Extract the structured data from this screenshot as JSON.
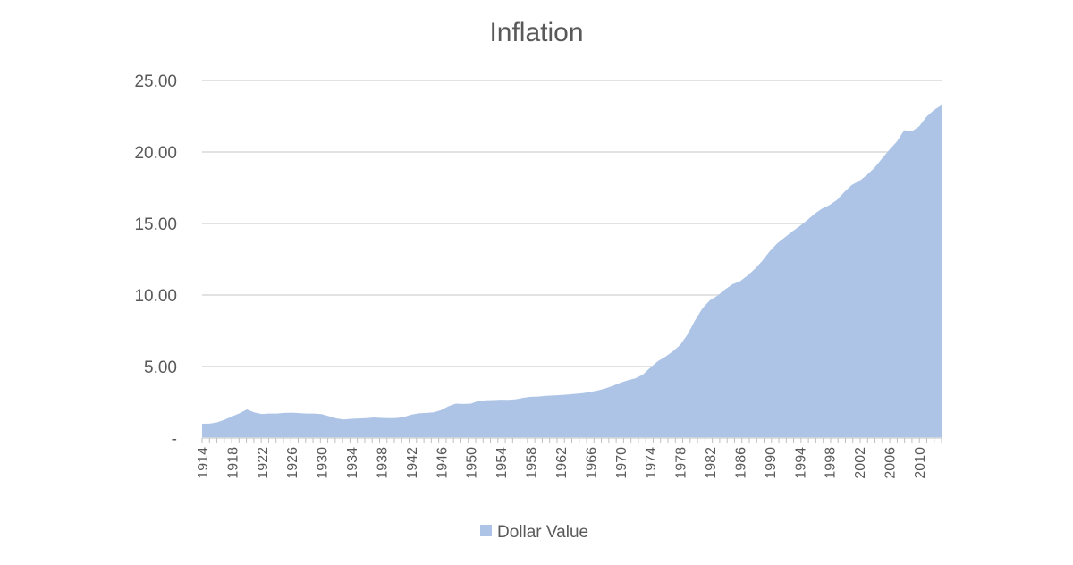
{
  "chart_data": {
    "type": "area",
    "title": "Inflation",
    "xlabel": "",
    "ylabel": "",
    "xlim": [
      1914,
      2013
    ],
    "ylim": [
      0,
      25
    ],
    "y_ticks": [
      {
        "value": 0,
        "label": "-"
      },
      {
        "value": 5,
        "label": "5.00"
      },
      {
        "value": 10,
        "label": "10.00"
      },
      {
        "value": 15,
        "label": "15.00"
      },
      {
        "value": 20,
        "label": "20.00"
      },
      {
        "value": 25,
        "label": "25.00"
      }
    ],
    "x_tick_labels": [
      "1914",
      "1918",
      "1922",
      "1926",
      "1930",
      "1934",
      "1938",
      "1942",
      "1946",
      "1950",
      "1954",
      "1958",
      "1962",
      "1966",
      "1970",
      "1974",
      "1978",
      "1982",
      "1986",
      "1990",
      "1994",
      "1998",
      "2002",
      "2006",
      "2010"
    ],
    "grid": true,
    "legend_position": "bottom",
    "color": "#adc4e6",
    "series": [
      {
        "name": "Dollar Value",
        "x": [
          1914,
          1915,
          1916,
          1917,
          1918,
          1919,
          1920,
          1921,
          1922,
          1923,
          1924,
          1925,
          1926,
          1927,
          1928,
          1929,
          1930,
          1931,
          1932,
          1933,
          1934,
          1935,
          1936,
          1937,
          1938,
          1939,
          1940,
          1941,
          1942,
          1943,
          1944,
          1945,
          1946,
          1947,
          1948,
          1949,
          1950,
          1951,
          1952,
          1953,
          1954,
          1955,
          1956,
          1957,
          1958,
          1959,
          1960,
          1961,
          1962,
          1963,
          1964,
          1965,
          1966,
          1967,
          1968,
          1969,
          1970,
          1971,
          1972,
          1973,
          1974,
          1975,
          1976,
          1977,
          1978,
          1979,
          1980,
          1981,
          1982,
          1983,
          1984,
          1985,
          1986,
          1987,
          1988,
          1989,
          1990,
          1991,
          1992,
          1993,
          1994,
          1995,
          1996,
          1997,
          1998,
          1999,
          2000,
          2001,
          2002,
          2003,
          2004,
          2005,
          2006,
          2007,
          2008,
          2009,
          2010,
          2011,
          2012,
          2013
        ],
        "values": [
          1.0,
          1.01,
          1.09,
          1.28,
          1.51,
          1.73,
          2.0,
          1.79,
          1.68,
          1.71,
          1.71,
          1.76,
          1.77,
          1.74,
          1.71,
          1.71,
          1.67,
          1.52,
          1.37,
          1.3,
          1.34,
          1.37,
          1.39,
          1.44,
          1.41,
          1.39,
          1.4,
          1.47,
          1.63,
          1.73,
          1.76,
          1.8,
          1.95,
          2.23,
          2.41,
          2.38,
          2.41,
          2.59,
          2.64,
          2.66,
          2.68,
          2.67,
          2.71,
          2.81,
          2.88,
          2.9,
          2.95,
          2.98,
          3.01,
          3.05,
          3.09,
          3.14,
          3.23,
          3.33,
          3.47,
          3.66,
          3.87,
          4.04,
          4.17,
          4.43,
          4.92,
          5.37,
          5.68,
          6.05,
          6.51,
          7.25,
          8.23,
          9.08,
          9.64,
          9.95,
          10.38,
          10.75,
          10.95,
          11.35,
          11.82,
          12.39,
          13.06,
          13.61,
          14.02,
          14.44,
          14.81,
          15.23,
          15.68,
          16.04,
          16.29,
          16.65,
          17.21,
          17.7,
          17.98,
          18.39,
          18.88,
          19.52,
          20.15,
          20.72,
          21.52,
          21.44,
          21.79,
          22.48,
          22.94,
          23.28
        ]
      }
    ]
  }
}
